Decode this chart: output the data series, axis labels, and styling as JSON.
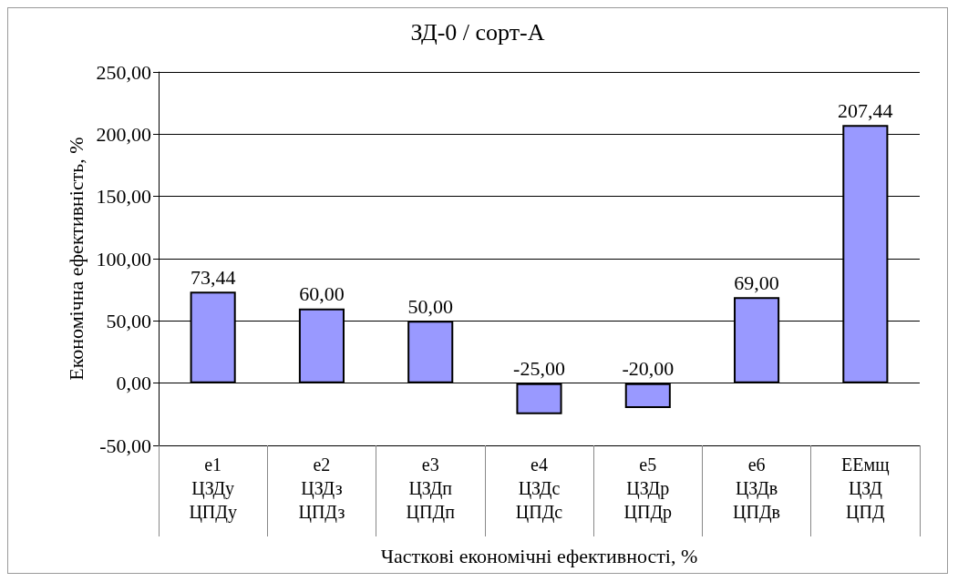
{
  "chart_data": {
    "type": "bar",
    "title": "ЗД-0 / сорт-А",
    "xlabel": "Часткові економічні ефективності, %",
    "ylabel": "Економічна ефективність, %",
    "categories": [
      "e1\nЦЗДу\nЦПДу",
      "e2\nЦЗДз\nЦПДз",
      "e3\nЦЗДп\nЦПДп",
      "e4\nЦЗДс\nЦПДс",
      "e5\nЦЗДр\nЦПДр",
      "e6\nЦЗДв\nЦПДв",
      "ЕЕмщ\nЦЗД\nЦПД"
    ],
    "values": [
      73.44,
      60,
      50,
      -25,
      -20,
      69,
      207.44
    ],
    "value_labels": [
      "73,44",
      "60,00",
      "50,00",
      "-25,00",
      "-20,00",
      "69,00",
      "207,44"
    ],
    "color": "#9999ff",
    "ylim": [
      -50,
      250
    ],
    "yticks": [
      {
        "value": -50,
        "label": "-50,00"
      },
      {
        "value": 0,
        "label": "0,00"
      },
      {
        "value": 50,
        "label": "50,00"
      },
      {
        "value": 100,
        "label": "100,00"
      },
      {
        "value": 150,
        "label": "150,00"
      },
      {
        "value": 200,
        "label": "200,00"
      },
      {
        "value": 250,
        "label": "250,00"
      }
    ],
    "grid": "y"
  }
}
